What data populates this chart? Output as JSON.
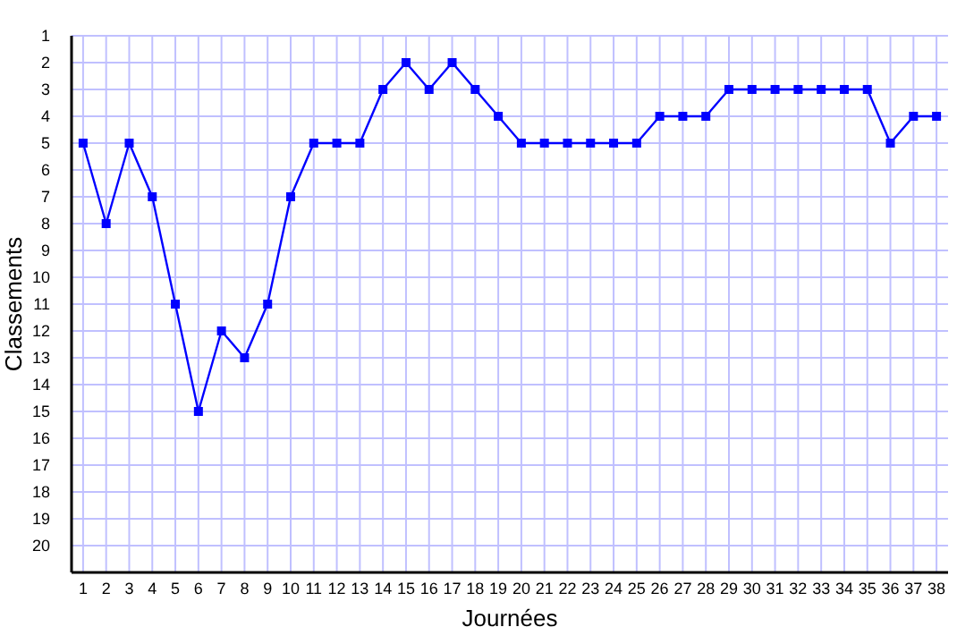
{
  "chart_data": {
    "type": "line",
    "xlabel": "Journées",
    "ylabel": "Classements",
    "x": [
      1,
      2,
      3,
      4,
      5,
      6,
      7,
      8,
      9,
      10,
      11,
      12,
      13,
      14,
      15,
      16,
      17,
      18,
      19,
      20,
      21,
      22,
      23,
      24,
      25,
      26,
      27,
      28,
      29,
      30,
      31,
      32,
      33,
      34,
      35,
      36,
      37,
      38
    ],
    "series": [
      {
        "color": "#0000ff",
        "values": [
          5,
          8,
          5,
          7,
          11,
          15,
          12,
          13,
          11,
          7,
          5,
          5,
          5,
          3,
          2,
          3,
          2,
          3,
          4,
          5,
          5,
          5,
          5,
          5,
          5,
          4,
          4,
          4,
          3,
          3,
          3,
          3,
          3,
          3,
          3,
          5,
          4,
          4
        ]
      }
    ],
    "xlim": [
      0.5,
      38.5
    ],
    "xticks": [
      1,
      2,
      3,
      4,
      5,
      6,
      7,
      8,
      9,
      10,
      11,
      12,
      13,
      14,
      15,
      16,
      17,
      18,
      19,
      20,
      21,
      22,
      23,
      24,
      25,
      26,
      27,
      28,
      29,
      30,
      31,
      32,
      33,
      34,
      35,
      36,
      37,
      38
    ],
    "ylim": [
      21,
      1
    ],
    "yticks": [
      1,
      2,
      3,
      4,
      5,
      6,
      7,
      8,
      9,
      10,
      11,
      12,
      13,
      14,
      15,
      16,
      17,
      18,
      19,
      20
    ],
    "grid": true,
    "marker": "square",
    "line_style": "solid"
  }
}
